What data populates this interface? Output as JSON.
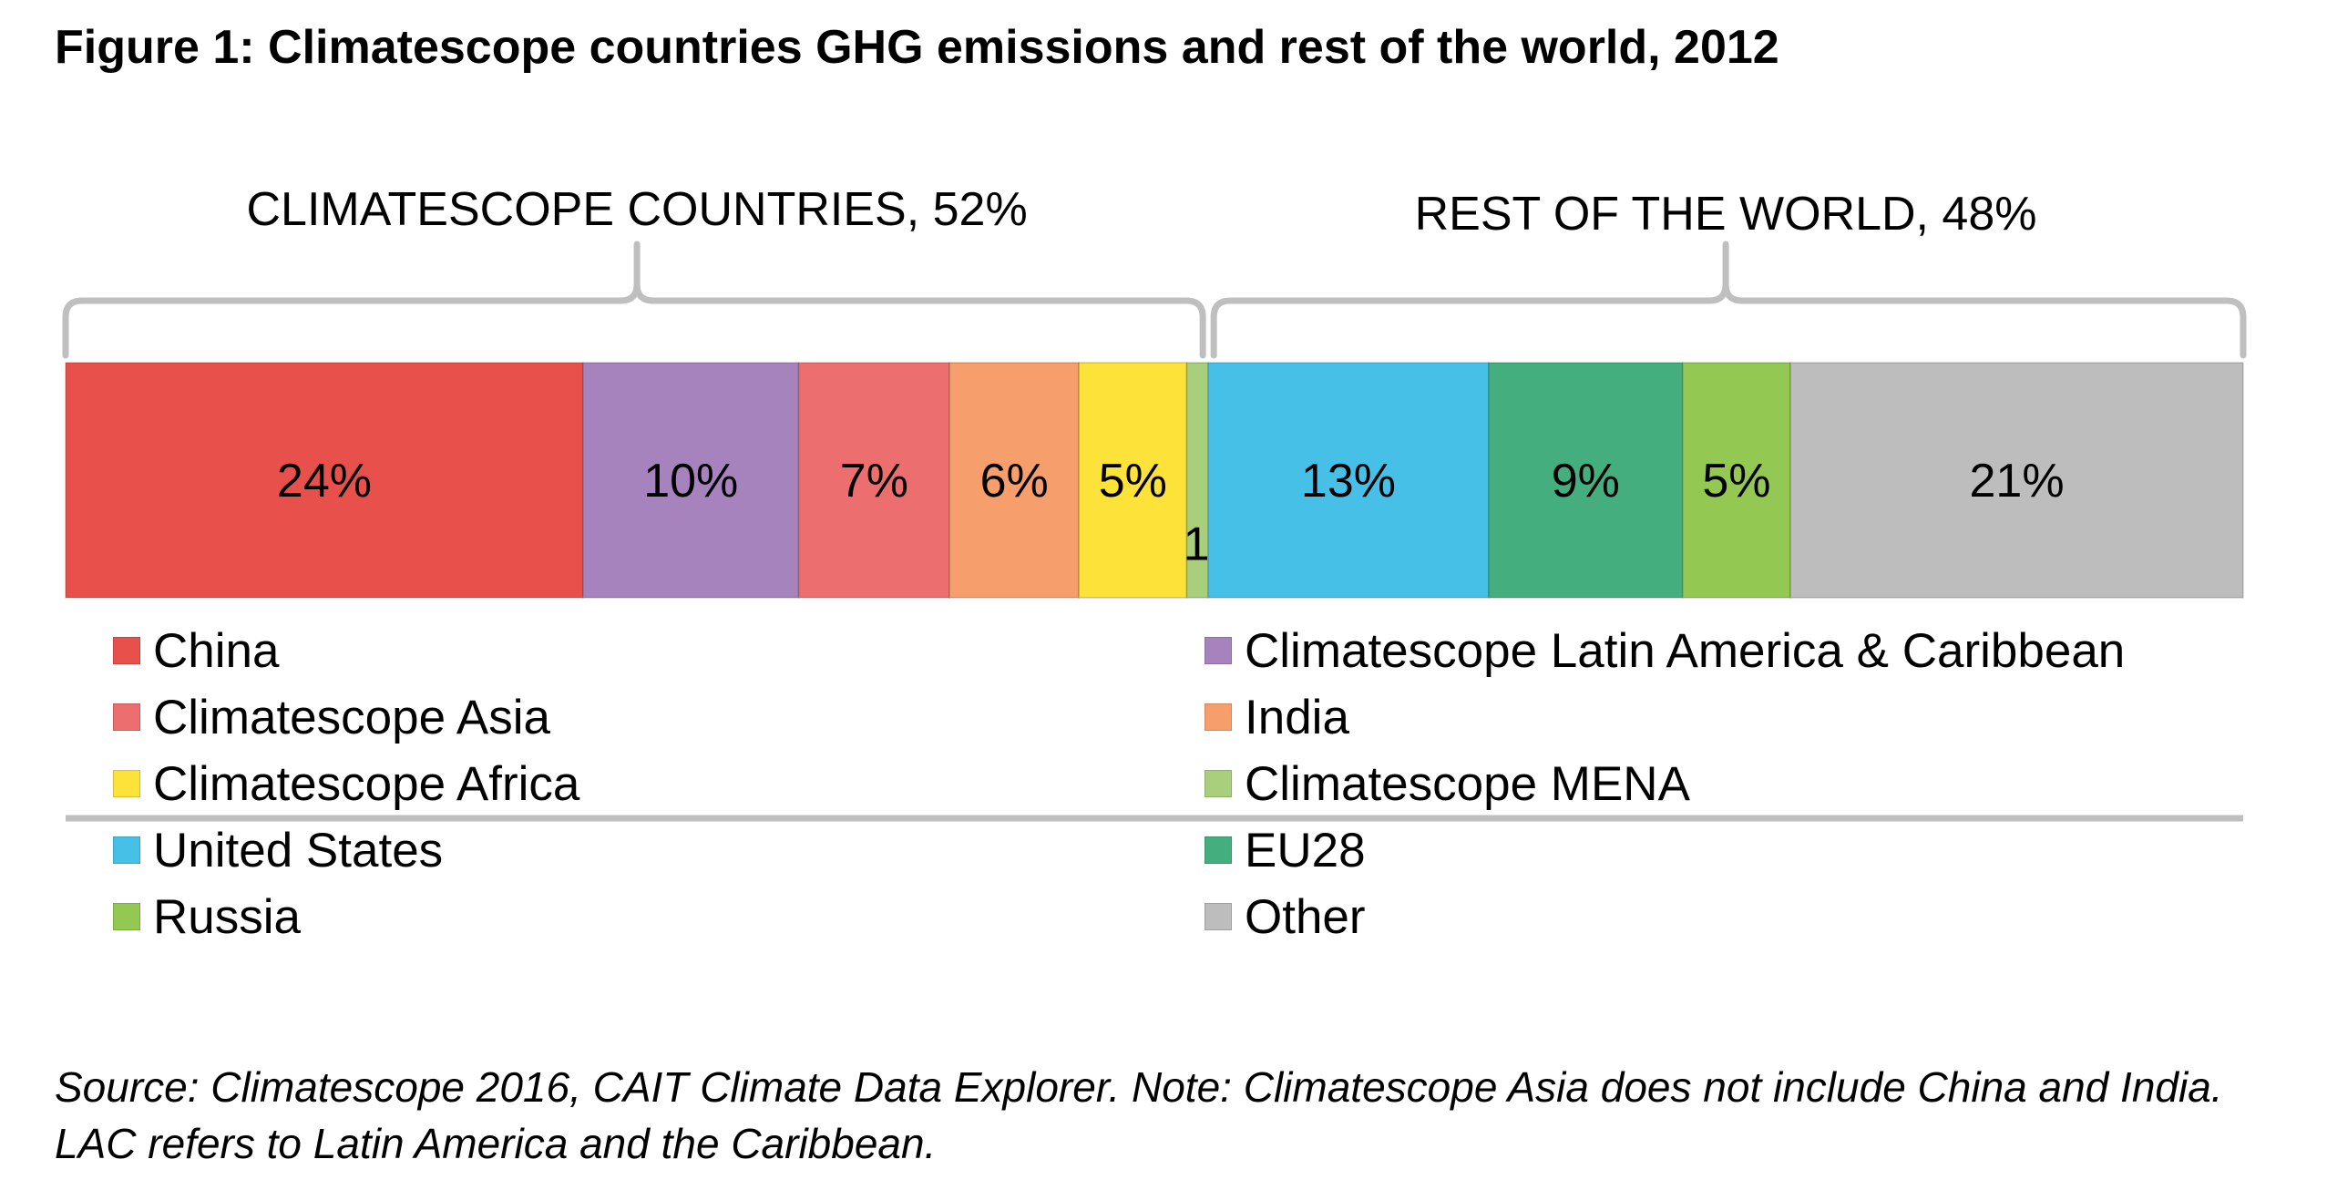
{
  "title": "Figure 1: Climatescope countries GHG emissions and rest of the world, 2012",
  "source_note": "Source: Climatescope 2016, CAIT Climate Data Explorer. Note: Climatescope Asia does not include China and India. LAC refers to Latin America and the Caribbean.",
  "chart_data": {
    "type": "bar",
    "orientation": "horizontal-stacked-100",
    "groups": [
      {
        "label": "CLIMATESCOPE COUNTRIES, 52%",
        "value": 52,
        "members": [
          "China",
          "Climatescope Latin America & Caribbean",
          "Climatescope Asia",
          "India",
          "Climatescope Africa",
          "Climatescope MENA"
        ]
      },
      {
        "label": "REST OF THE WORLD, 48%",
        "value": 48,
        "members": [
          "United States",
          "EU28",
          "Russia",
          "Other"
        ]
      }
    ],
    "series": [
      {
        "name": "China",
        "value": 24,
        "label": "24%",
        "color": "#E8504C"
      },
      {
        "name": "Climatescope Latin America & Caribbean",
        "value": 10,
        "label": "10%",
        "color": "#A783BE"
      },
      {
        "name": "Climatescope Asia",
        "value": 7,
        "label": "7%",
        "color": "#EC6E6E"
      },
      {
        "name": "India",
        "value": 6,
        "label": "6%",
        "color": "#F69F6C"
      },
      {
        "name": "Climatescope Africa",
        "value": 5,
        "label": "5%",
        "color": "#FDE23A"
      },
      {
        "name": "Climatescope MENA",
        "value": 1,
        "label": "1%",
        "color": "#A9CE7C"
      },
      {
        "name": "United States",
        "value": 13,
        "label": "13%",
        "color": "#47C0E7"
      },
      {
        "name": "EU28",
        "value": 9,
        "label": "9%",
        "color": "#45AE7E"
      },
      {
        "name": "Russia",
        "value": 5,
        "label": "5%",
        "color": "#93C852"
      },
      {
        "name": "Other",
        "value": 21,
        "label": "21%",
        "color": "#BDBDBD"
      }
    ],
    "legend": {
      "placement": "bottom",
      "columns": [
        [
          "China",
          "Climatescope Asia",
          "Climatescope Africa",
          "United States",
          "Russia"
        ],
        [
          "Climatescope Latin America & Caribbean",
          "India",
          "Climatescope MENA",
          "EU28",
          "Other"
        ]
      ]
    },
    "xlim": [
      0,
      100
    ],
    "grid": false
  }
}
